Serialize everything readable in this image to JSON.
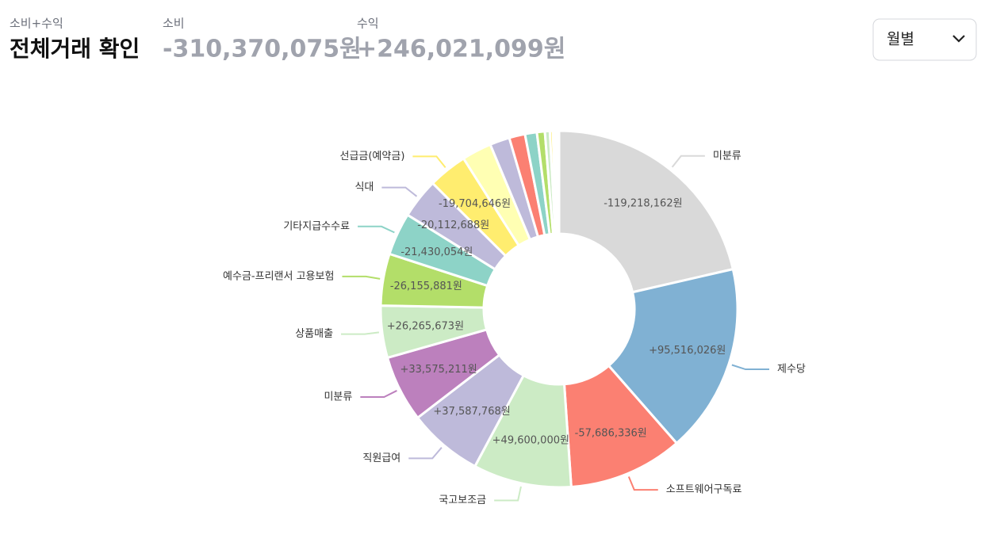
{
  "header": {
    "combined_label": "소비+수익",
    "title": "전체거래 확인",
    "spend_label": "소비",
    "spend_total": "-310,370,075원",
    "income_label": "수익",
    "income_total": "+246,021,099원"
  },
  "dropdown": {
    "label": "월별"
  },
  "chart_data": {
    "type": "pie",
    "categories": [
      "미분류",
      "제수당",
      "소프트웨어구독료",
      "국고보조금",
      "직원급여",
      "미분류",
      "상품매출",
      "예수금-프리랜서 고용보험",
      "기타지급수수료",
      "식대",
      "선급금(예약금)",
      null,
      null,
      null,
      null,
      null,
      null,
      null,
      null,
      null,
      null,
      null,
      null
    ],
    "values": [
      -119218162,
      95516026,
      -57686336,
      49600000,
      37587768,
      33575211,
      26265673,
      -26155881,
      -21430054,
      -20112688,
      -19704646,
      -15000000,
      -10000000,
      -8000000,
      -6000000,
      -4000000,
      -2500000,
      -1500000,
      -1000000,
      -800000,
      -600000,
      -400000,
      -300000
    ],
    "value_labels": [
      "-119,218,162원",
      "+95,516,026원",
      "-57,686,336원",
      "+49,600,000원",
      "+37,587,768원",
      "+33,575,211원",
      "+26,265,673원",
      "-26,155,881원",
      "-21,430,054원",
      "-20,112,688원",
      "-19,704,646원",
      null,
      null,
      null,
      null,
      null,
      null,
      null,
      null,
      null,
      null,
      null,
      null
    ],
    "colors": [
      "#d9d9d9",
      "#80b1d3",
      "#fb8072",
      "#ccebc5",
      "#bebada",
      "#bc80bd",
      "#ccebc5",
      "#b3de69",
      "#8dd3c7",
      "#bebada",
      "#ffed6f",
      "#ffffb3",
      "#bebada",
      "#fb8072",
      "#8dd3c7",
      "#b3de69",
      "#ccebc5",
      "#ffed6f",
      "#fccde5",
      "#d9d9d9",
      "#80b1d3",
      "#ffffb3",
      "#bc80bd"
    ]
  }
}
